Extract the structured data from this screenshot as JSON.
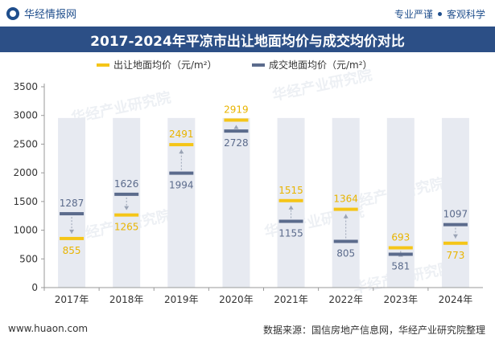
{
  "header": {
    "brand": "华经情报网",
    "slogan_a": "专业严谨",
    "slogan_b": "客观科学"
  },
  "footer": {
    "website": "www.huaon.com",
    "source": "数据来源：国信房地产信息网，华经产业研究院整理"
  },
  "watermark": "华经产业研究院",
  "colors": {
    "series1": "#f5c518",
    "series2": "#5b6b8c",
    "column": "#e7eaf1",
    "title_bg": "#2c4f86"
  },
  "chart_data": {
    "type": "bar",
    "title": "2017-2024年平凉市出让地面均价与成交均价对比",
    "categories": [
      "2017年",
      "2018年",
      "2019年",
      "2020年",
      "2021年",
      "2022年",
      "2023年",
      "2024年"
    ],
    "series": [
      {
        "name": "出让地面均价（元/m²）",
        "values": [
          855,
          1265,
          2491,
          2919,
          1515,
          1364,
          693,
          773
        ]
      },
      {
        "name": "成交地面均价（元/m²）",
        "values": [
          1287,
          1626,
          1994,
          2728,
          1155,
          805,
          581,
          1097
        ]
      }
    ],
    "yticks": [
      0,
      500,
      1000,
      1500,
      2000,
      2500,
      3000,
      3500
    ],
    "ylim": [
      0,
      3500
    ],
    "legend_position": "top-right",
    "grid": false
  }
}
